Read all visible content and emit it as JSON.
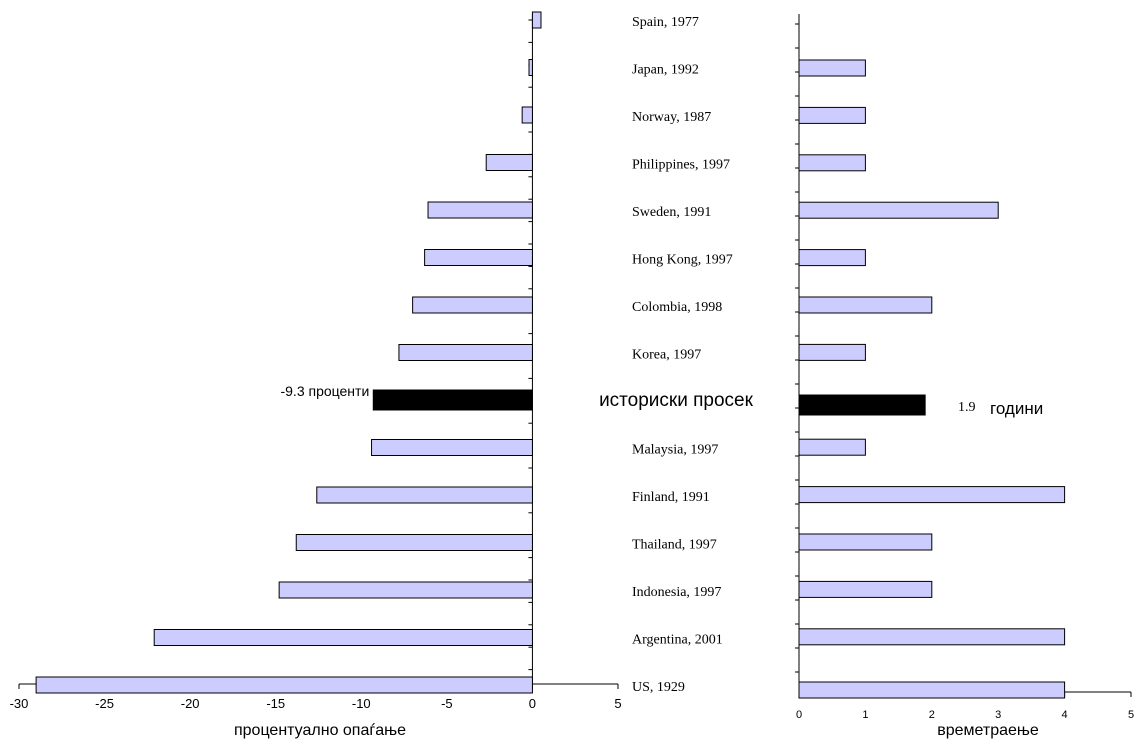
{
  "chart_data": [
    {
      "type": "bar",
      "orientation": "horizontal",
      "categories": [
        "Spain, 1977",
        "Japan, 1992",
        "Norway, 1987",
        "Philippines, 1997",
        "Sweden, 1991",
        "Hong Kong, 1997",
        "Colombia, 1998",
        "Korea, 1997",
        "историски просек",
        "Malaysia, 1997",
        "Finland, 1991",
        "Thailand, 1997",
        "Indonesia, 1997",
        "Argentina, 2001",
        "US, 1929"
      ],
      "values": [
        0.5,
        -0.2,
        -0.6,
        -2.7,
        -6.1,
        -6.3,
        -7.0,
        -7.8,
        -9.3,
        -9.4,
        -12.6,
        -13.8,
        -14.8,
        -22.1,
        -29.0
      ],
      "highlight_index": 8,
      "highlight_label": "-9.3 проценти",
      "xlabel": "процентуално опаѓање",
      "xlim": [
        -30,
        5
      ],
      "xticks": [
        "-30",
        "-25",
        "-20",
        "-15",
        "-10",
        "-5",
        "0",
        "5"
      ],
      "bar_fill": "#ccccff",
      "highlight_fill": "#000000"
    },
    {
      "type": "bar",
      "orientation": "horizontal",
      "categories": [
        "Spain, 1977",
        "Japan, 1992",
        "Norway, 1987",
        "Philippines, 1997",
        "Sweden, 1991",
        "Hong Kong, 1997",
        "Colombia, 1998",
        "Korea, 1997",
        "историски просек",
        "Malaysia, 1997",
        "Finland, 1991",
        "Thailand, 1997",
        "Indonesia, 1997",
        "Argentina, 2001",
        "US, 1929"
      ],
      "values": [
        0,
        1,
        1,
        1,
        3,
        1,
        2,
        1,
        1.9,
        1,
        4,
        2,
        2,
        4,
        4
      ],
      "highlight_index": 8,
      "highlight_value_label": "1.9",
      "highlight_unit_label": "години",
      "xlabel": "времетраење",
      "xlim": [
        0,
        5
      ],
      "xticks": [
        "0",
        "1",
        "2",
        "3",
        "4",
        "5"
      ],
      "bar_fill": "#ccccff",
      "highlight_fill": "#000000"
    }
  ]
}
